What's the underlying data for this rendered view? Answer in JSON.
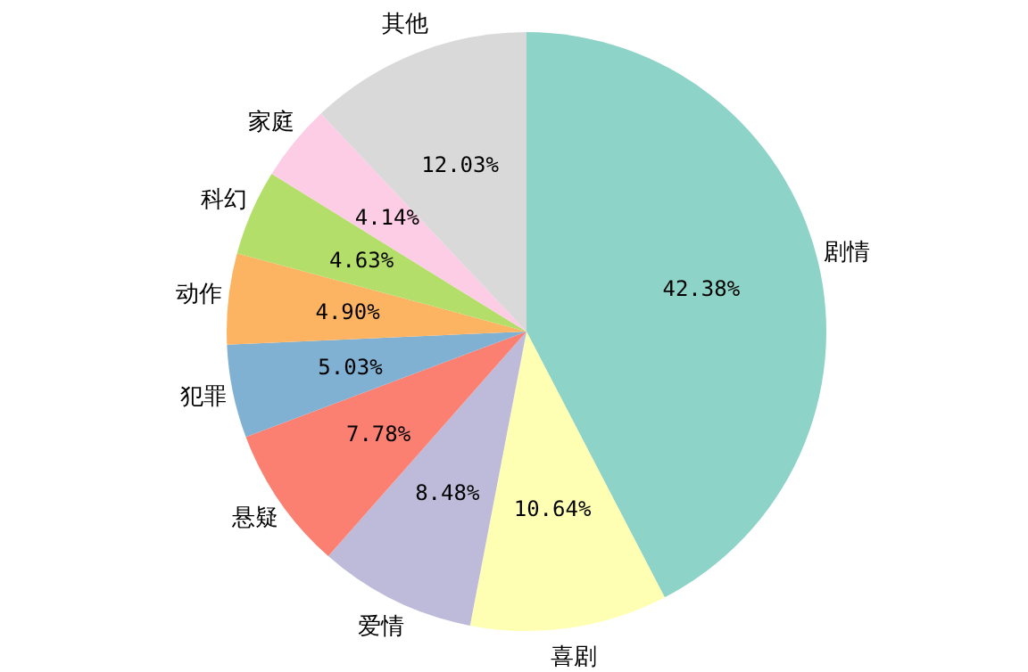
{
  "chart_data": {
    "type": "pie",
    "categories": [
      "剧情",
      "喜剧",
      "爱情",
      "悬疑",
      "犯罪",
      "动作",
      "科幻",
      "家庭",
      "其他"
    ],
    "values": [
      42.38,
      10.64,
      8.48,
      7.78,
      5.03,
      4.9,
      4.63,
      4.14,
      12.03
    ],
    "colors": [
      "#8dd3c7",
      "#ffffb3",
      "#bebada",
      "#fb8072",
      "#80b1d3",
      "#fdb462",
      "#b3de69",
      "#fccde5",
      "#d9d9d9"
    ],
    "value_labels": [
      "42.38%",
      "10.64%",
      "8.48%",
      "7.78%",
      "5.03%",
      "4.90%",
      "4.63%",
      "4.14%",
      "12.03%"
    ]
  }
}
